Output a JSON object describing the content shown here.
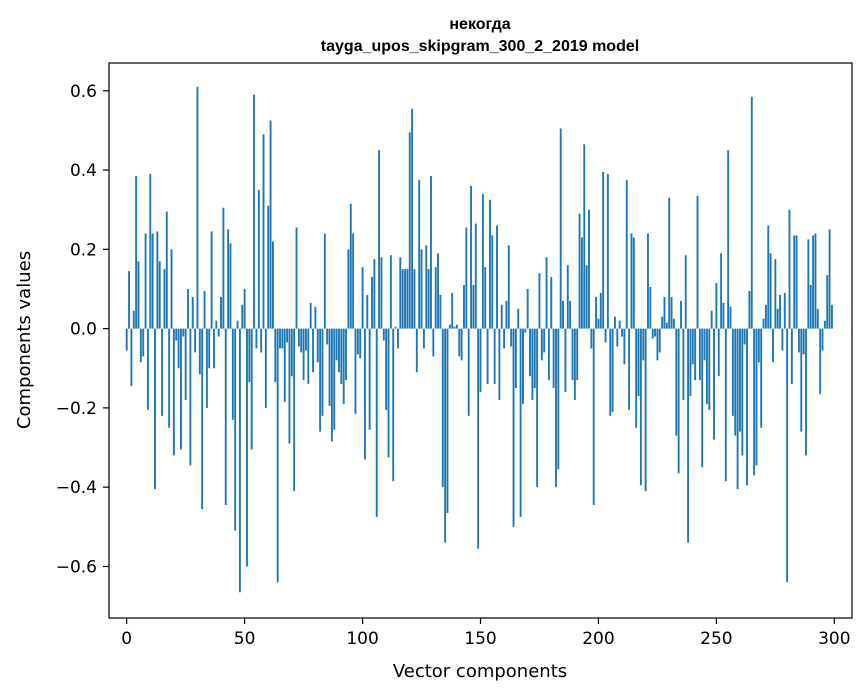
{
  "chart_data": {
    "type": "bar",
    "title": "некогда",
    "subtitle": "tayga_upos_skipgram_300_2_2019 model",
    "xlabel": "Vector components",
    "ylabel": "Components values",
    "xlim": [
      -7.5,
      307.5
    ],
    "ylim": [
      -0.73,
      0.67
    ],
    "x_ticks": [
      0,
      50,
      100,
      150,
      200,
      250,
      300
    ],
    "x_tick_labels": [
      "0",
      "50",
      "100",
      "150",
      "200",
      "250",
      "300"
    ],
    "y_ticks": [
      -0.6,
      -0.4,
      -0.2,
      0.0,
      0.2,
      0.4,
      0.6
    ],
    "y_tick_labels": [
      "−0.6",
      "−0.4",
      "−0.2",
      "0.0",
      "0.2",
      "0.4",
      "0.6"
    ],
    "grid": false,
    "bar_color": "#1f77b4",
    "values": [
      -0.055,
      0.145,
      -0.145,
      0.045,
      0.385,
      0.17,
      -0.085,
      -0.07,
      0.24,
      -0.205,
      0.39,
      0.24,
      -0.405,
      0.245,
      0.17,
      -0.22,
      0.15,
      0.295,
      -0.25,
      0.2,
      -0.32,
      -0.03,
      -0.1,
      -0.305,
      -0.02,
      -0.18,
      0.1,
      -0.345,
      0.08,
      -0.06,
      0.61,
      -0.115,
      -0.455,
      0.095,
      -0.2,
      -0.1,
      0.245,
      -0.1,
      0.02,
      -0.02,
      0.08,
      0.305,
      -0.445,
      0.25,
      0.215,
      -0.23,
      -0.51,
      0.02,
      -0.665,
      0.06,
      0.1,
      -0.6,
      -0.135,
      -0.305,
      0.59,
      -0.05,
      0.35,
      -0.06,
      0.49,
      -0.2,
      0.31,
      0.525,
      0.22,
      -0.135,
      -0.64,
      -0.05,
      -0.05,
      -0.185,
      -0.035,
      -0.29,
      -0.12,
      -0.41,
      0.255,
      -0.045,
      -0.06,
      -0.13,
      -0.055,
      -0.14,
      0.065,
      -0.11,
      0.055,
      -0.085,
      -0.26,
      -0.22,
      0.24,
      -0.04,
      -0.195,
      -0.285,
      -0.255,
      -0.08,
      -0.11,
      -0.14,
      -0.19,
      -0.13,
      0.2,
      0.315,
      0.24,
      -0.215,
      -0.065,
      -0.075,
      0.155,
      -0.33,
      0.085,
      -0.255,
      0.13,
      0.175,
      -0.475,
      0.45,
      0.18,
      -0.03,
      -0.205,
      -0.325,
      0.185,
      -0.385,
      0.005,
      -0.05,
      0.18,
      0.15,
      0.15,
      0.15,
      0.495,
      0.555,
      0.15,
      -0.11,
      0.375,
      0.2,
      -0.05,
      0.21,
      0.15,
      0.385,
      -0.07,
      0.155,
      0.19,
      0.085,
      -0.4,
      -0.54,
      -0.465,
      0.01,
      0.09,
      0.005,
      0.01,
      -0.07,
      -0.08,
      0.11,
      0.255,
      -0.22,
      0.36,
      0.11,
      0.265,
      -0.555,
      -0.16,
      0.34,
      0.155,
      -0.14,
      0.325,
      0.235,
      -0.14,
      0.26,
      -0.18,
      0.06,
      -0.05,
      0.07,
      0.21,
      -0.045,
      -0.5,
      -0.15,
      0.05,
      -0.475,
      -0.19,
      -0.01,
      0.1,
      -0.12,
      -0.18,
      -0.15,
      -0.4,
      0.14,
      -0.08,
      -0.06,
      0.18,
      -0.13,
      0.13,
      -0.15,
      -0.4,
      -0.355,
      0.505,
      0.07,
      -0.16,
      0.16,
      0.07,
      -0.13,
      -0.18,
      -0.13,
      0.29,
      0.23,
      0.465,
      0.16,
      0.3,
      -0.05,
      -0.445,
      0.08,
      0.025,
      0.09,
      0.395,
      -0.035,
      0.39,
      -0.22,
      -0.21,
      0.03,
      -0.045,
      0.02,
      -0.02,
      -0.09,
      0.375,
      -0.205,
      0.24,
      0.23,
      -0.25,
      -0.17,
      -0.395,
      -0.08,
      -0.41,
      0.24,
      0.105,
      -0.025,
      -0.02,
      -0.08,
      -0.06,
      0.03,
      0.08,
      0.015,
      0.33,
      0.08,
      0.025,
      -0.27,
      -0.365,
      0.07,
      -0.18,
      0.185,
      -0.54,
      -0.17,
      -0.09,
      -0.13,
      0.335,
      -0.13,
      -0.35,
      -0.08,
      -0.19,
      -0.205,
      0.045,
      -0.28,
      0.115,
      -0.12,
      0.19,
      0.065,
      -0.385,
      0.45,
      0.055,
      -0.22,
      -0.27,
      -0.405,
      -0.26,
      -0.32,
      -0.04,
      -0.395,
      0.095,
      0.585,
      -0.37,
      -0.345,
      -0.085,
      -0.25,
      0.025,
      0.06,
      0.26,
      0.19,
      -0.085,
      0.175,
      0.05,
      0.085,
      -0.055,
      0.09,
      -0.64,
      0.3,
      -0.14,
      0.235,
      0.235,
      -0.06,
      -0.26,
      -0.065,
      -0.32,
      0.225,
      0.11,
      0.235,
      0.24,
      0.05,
      -0.165,
      -0.055,
      0.02,
      0.135,
      0.25,
      0.06
    ]
  }
}
